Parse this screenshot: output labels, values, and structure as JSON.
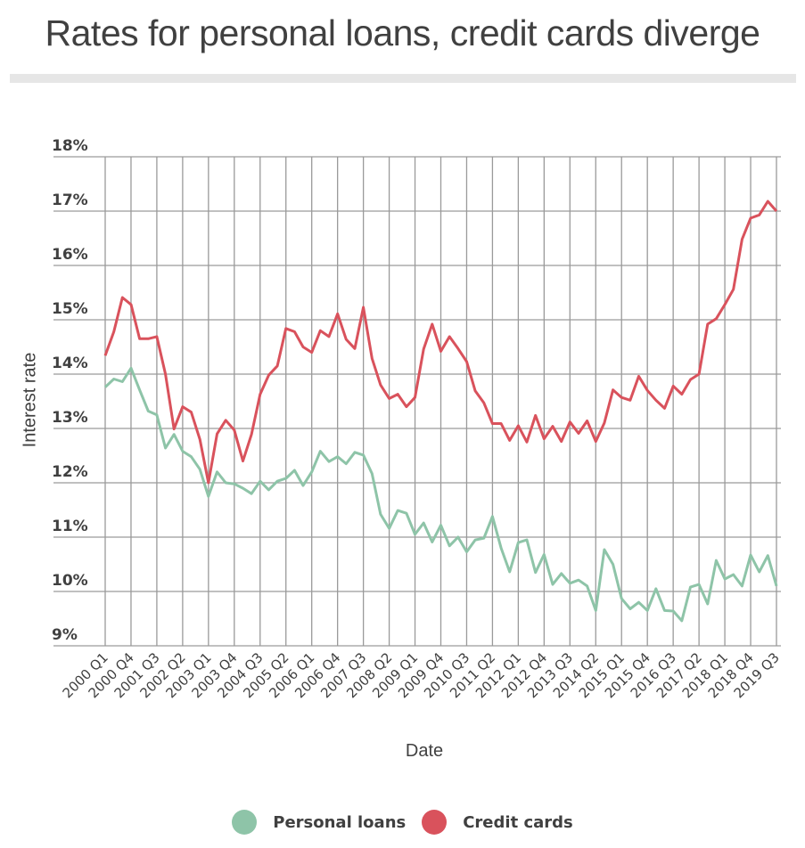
{
  "header": {
    "title": "Rates for personal loans, credit cards diverge"
  },
  "colors": {
    "personal_loans": "#8ec4a8",
    "credit_cards": "#d9525c",
    "grid": "#9a9a9a",
    "text": "#404040",
    "title_rule": "#e6e6e6"
  },
  "legend": {
    "items": [
      {
        "label": "Personal loans",
        "color": "#8ec4a8"
      },
      {
        "label": "Credit cards",
        "color": "#d9525c"
      }
    ]
  },
  "chart_data": {
    "type": "line",
    "title": "Rates for personal loans, credit cards diverge",
    "xlabel": "Date",
    "ylabel": "Interest rate",
    "ylim": [
      9,
      18
    ],
    "yticks": [
      "9%",
      "10%",
      "11%",
      "12%",
      "13%",
      "14%",
      "15%",
      "16%",
      "17%",
      "18%"
    ],
    "grid": true,
    "legend_position": "bottom",
    "xtick_labels": [
      "2000 Q1",
      "2000 Q4",
      "2001 Q3",
      "2002 Q2",
      "2003 Q1",
      "2003 Q4",
      "2004 Q3",
      "2005 Q2",
      "2006 Q1",
      "2006 Q4",
      "2007 Q3",
      "2008 Q2",
      "2009 Q1",
      "2009 Q4",
      "2010 Q3",
      "2011 Q2",
      "2012 Q1",
      "2012 Q4",
      "2013 Q3",
      "2014 Q2",
      "2015 Q1",
      "2015 Q4",
      "2016 Q3",
      "2017 Q2",
      "2018 Q1",
      "2018 Q4",
      "2019 Q3"
    ],
    "x": [
      "2000 Q1",
      "2000 Q2",
      "2000 Q3",
      "2000 Q4",
      "2001 Q1",
      "2001 Q2",
      "2001 Q3",
      "2001 Q4",
      "2002 Q1",
      "2002 Q2",
      "2002 Q3",
      "2002 Q4",
      "2003 Q1",
      "2003 Q2",
      "2003 Q3",
      "2003 Q4",
      "2004 Q1",
      "2004 Q2",
      "2004 Q3",
      "2004 Q4",
      "2005 Q1",
      "2005 Q2",
      "2005 Q3",
      "2005 Q4",
      "2006 Q1",
      "2006 Q2",
      "2006 Q3",
      "2006 Q4",
      "2007 Q1",
      "2007 Q2",
      "2007 Q3",
      "2007 Q4",
      "2008 Q1",
      "2008 Q2",
      "2008 Q3",
      "2008 Q4",
      "2009 Q1",
      "2009 Q2",
      "2009 Q3",
      "2009 Q4",
      "2010 Q1",
      "2010 Q2",
      "2010 Q3",
      "2010 Q4",
      "2011 Q1",
      "2011 Q2",
      "2011 Q3",
      "2011 Q4",
      "2012 Q1",
      "2012 Q2",
      "2012 Q3",
      "2012 Q4",
      "2013 Q1",
      "2013 Q2",
      "2013 Q3",
      "2013 Q4",
      "2014 Q1",
      "2014 Q2",
      "2014 Q3",
      "2014 Q4",
      "2015 Q1",
      "2015 Q2",
      "2015 Q3",
      "2015 Q4",
      "2016 Q1",
      "2016 Q2",
      "2016 Q3",
      "2016 Q4",
      "2017 Q1",
      "2017 Q2",
      "2017 Q3",
      "2017 Q4",
      "2018 Q1",
      "2018 Q2",
      "2018 Q3",
      "2018 Q4",
      "2019 Q1",
      "2019 Q2",
      "2019 Q3"
    ],
    "series": [
      {
        "name": "Personal loans",
        "color": "#8ec4a8",
        "values": [
          13.76,
          13.91,
          13.86,
          14.11,
          13.71,
          13.32,
          13.25,
          12.64,
          12.89,
          12.58,
          12.48,
          12.25,
          11.75,
          12.2,
          12.0,
          11.98,
          11.9,
          11.8,
          12.03,
          11.87,
          12.03,
          12.08,
          12.23,
          11.95,
          12.2,
          12.58,
          12.39,
          12.48,
          12.35,
          12.56,
          12.51,
          12.17,
          11.42,
          11.16,
          11.49,
          11.44,
          11.05,
          11.26,
          10.91,
          11.22,
          10.84,
          11.0,
          10.73,
          10.95,
          10.98,
          11.38,
          10.8,
          10.36,
          10.9,
          10.95,
          10.35,
          10.68,
          10.13,
          10.33,
          10.15,
          10.21,
          10.1,
          9.65,
          10.77,
          10.5,
          9.87,
          9.68,
          9.8,
          9.65,
          10.05,
          9.65,
          9.64,
          9.46,
          10.08,
          10.13,
          9.77,
          10.57,
          10.23,
          10.31,
          10.1,
          10.67,
          10.36,
          10.66,
          10.1
        ]
      },
      {
        "name": "Credit cards",
        "color": "#d9525c",
        "values": [
          14.34,
          14.78,
          15.41,
          15.28,
          14.65,
          14.65,
          14.69,
          14.0,
          12.99,
          13.4,
          13.3,
          12.8,
          12.0,
          12.9,
          13.15,
          12.97,
          12.4,
          12.89,
          13.63,
          13.98,
          14.15,
          14.84,
          14.78,
          14.5,
          14.4,
          14.8,
          14.69,
          15.11,
          14.64,
          14.47,
          15.23,
          14.29,
          13.8,
          13.55,
          13.63,
          13.4,
          13.57,
          14.46,
          14.92,
          14.42,
          14.69,
          14.47,
          14.23,
          13.69,
          13.47,
          13.09,
          13.09,
          12.78,
          13.05,
          12.75,
          13.24,
          12.81,
          13.04,
          12.76,
          13.12,
          12.91,
          13.14,
          12.76,
          13.1,
          13.71,
          13.57,
          13.52,
          13.96,
          13.7,
          13.52,
          13.37,
          13.78,
          13.63,
          13.9,
          14.0,
          14.92,
          15.02,
          15.28,
          15.56,
          16.48,
          16.87,
          16.93,
          17.18,
          17.0
        ]
      }
    ]
  }
}
